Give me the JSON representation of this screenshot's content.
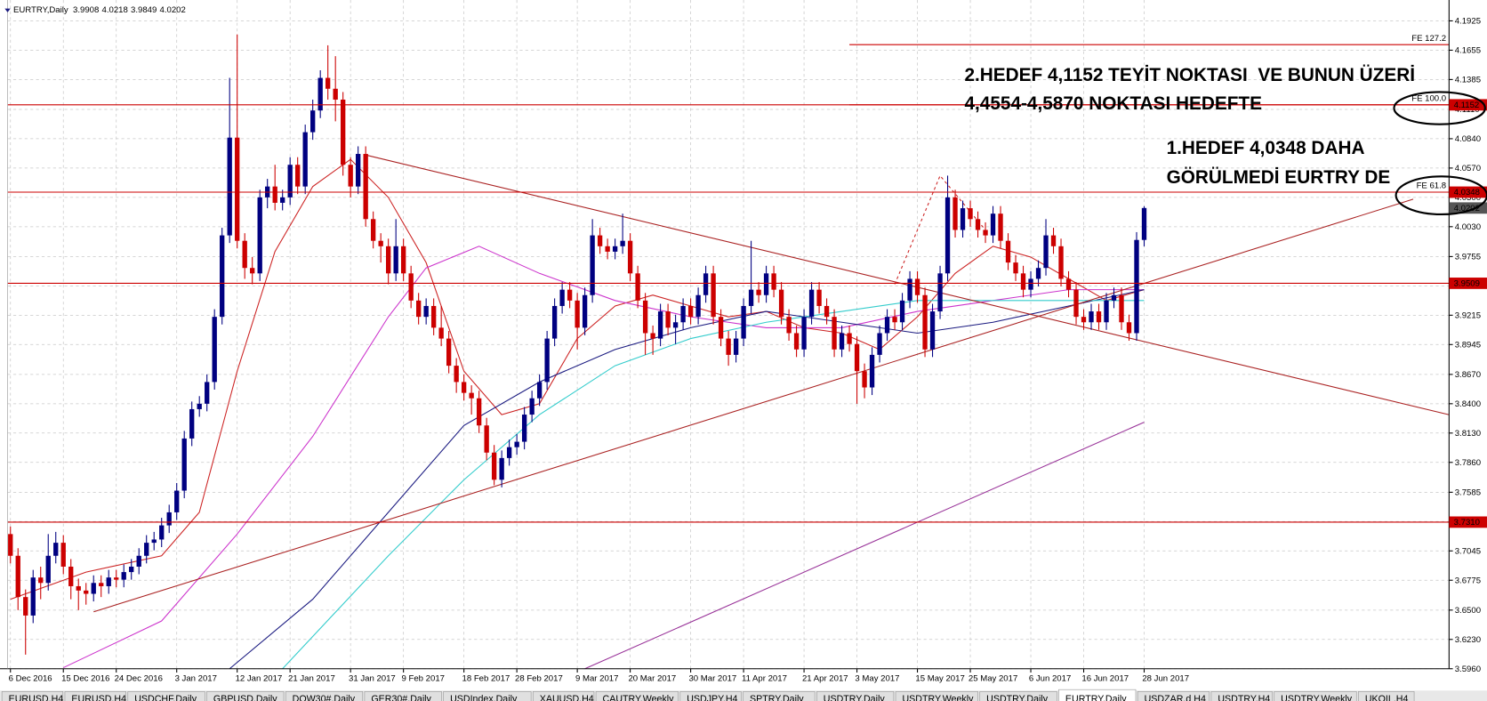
{
  "chart_data": {
    "type": "candlestick",
    "title": "EURTRY,Daily",
    "annotations": [
      "2.HEDEF 4,1152 TEYİT NOKTASI  VE BUNUN ÜZERİ",
      "4,4554-4,5870 NOKTASI HEDEFTE",
      "1.HEDEF 4,0348 DAHA",
      "GÖRÜLMEDİ EURTRY DE"
    ],
    "categories": [
      "6 Dec 2016",
      null,
      null,
      null,
      null,
      null,
      null,
      "15 Dec 2016",
      null,
      null,
      null,
      null,
      null,
      null,
      "24 Dec 2016",
      null,
      null,
      null,
      null,
      null,
      null,
      null,
      "3 Jan 2017",
      null,
      null,
      null,
      null,
      null,
      null,
      null,
      "12 Jan 2017",
      null,
      null,
      null,
      null,
      null,
      null,
      "21 Jan 2017",
      null,
      null,
      null,
      null,
      null,
      null,
      null,
      "31 Jan 2017",
      null,
      null,
      null,
      null,
      null,
      null,
      "9 Feb 2017",
      null,
      null,
      null,
      null,
      null,
      null,
      null,
      "18 Feb 2017",
      null,
      null,
      null,
      null,
      null,
      null,
      "28 Feb 2017",
      null,
      null,
      null,
      null,
      null,
      null,
      null,
      "9 Mar 2017",
      null,
      null,
      null,
      null,
      null,
      null,
      "20 Mar 2017",
      null,
      null,
      null,
      null,
      null,
      null,
      null,
      "30 Mar 2017",
      null,
      null,
      null,
      null,
      null,
      null,
      "11 Apr 2017",
      null,
      null,
      null,
      null,
      null,
      null,
      null,
      "21 Apr 2017",
      null,
      null,
      null,
      null,
      null,
      null,
      "3 May 2017",
      null,
      null,
      null,
      null,
      null,
      null,
      null,
      "15 May 2017",
      null,
      null,
      null,
      null,
      null,
      null,
      "25 May 2017",
      null,
      null,
      null,
      null,
      null,
      null,
      null,
      "6 Jun 2017",
      null,
      null,
      null,
      null,
      null,
      null,
      "16 Jun 2017",
      null,
      null,
      null,
      null,
      null,
      null,
      null,
      "28 Jun 2017"
    ],
    "open": [
      3.72,
      3.7,
      3.662,
      3.645,
      3.68,
      3.675,
      3.7,
      3.712,
      3.69,
      3.672,
      3.668,
      3.665,
      3.675,
      3.672,
      3.68,
      3.678,
      3.685,
      3.69,
      3.7,
      3.712,
      3.715,
      3.728,
      3.74,
      3.76,
      3.808,
      3.835,
      3.84,
      3.86,
      3.92,
      3.995,
      4.085,
      3.99,
      3.965,
      3.96,
      4.03,
      4.04,
      4.025,
      4.03,
      4.06,
      4.04,
      4.09,
      4.11,
      4.14,
      4.13,
      4.12,
      4.06,
      4.04,
      4.07,
      4.01,
      3.99,
      3.985,
      3.96,
      3.985,
      3.96,
      3.935,
      3.92,
      3.93,
      3.91,
      3.9,
      3.875,
      3.86,
      3.85,
      3.845,
      3.82,
      3.795,
      3.77,
      3.79,
      3.8,
      3.805,
      3.83,
      3.845,
      3.86,
      3.9,
      3.93,
      3.945,
      3.935,
      3.91,
      3.94,
      3.995,
      3.985,
      3.98,
      3.985,
      3.99,
      3.96,
      3.935,
      3.905,
      3.9,
      3.925,
      3.91,
      3.915,
      3.93,
      3.92,
      3.94,
      3.96,
      3.92,
      3.9,
      3.885,
      3.9,
      3.93,
      3.945,
      3.94,
      3.96,
      3.945,
      3.92,
      3.905,
      3.89,
      3.92,
      3.945,
      3.93,
      3.92,
      3.89,
      3.905,
      3.895,
      3.87,
      3.855,
      3.885,
      3.905,
      3.92,
      3.915,
      3.935,
      3.955,
      3.94,
      3.89,
      3.925,
      3.96,
      4.03,
      4,
      4.02,
      4.01,
      4,
      3.995,
      4.015,
      3.99,
      3.97,
      3.96,
      3.945,
      3.955,
      3.965,
      3.995,
      3.985,
      3.955,
      3.945,
      3.92,
      3.915,
      3.925,
      3.915,
      3.935,
      3.94,
      3.915,
      3.905,
      3.9908
    ],
    "high": [
      3.727,
      3.707,
      3.669,
      3.687,
      3.69,
      3.72,
      3.722,
      3.719,
      3.697,
      3.679,
      3.675,
      3.682,
      3.682,
      3.687,
      3.687,
      3.692,
      3.697,
      3.707,
      3.719,
      3.722,
      3.735,
      3.747,
      3.767,
      3.815,
      3.842,
      3.847,
      3.867,
      3.927,
      4.002,
      4.14,
      4.18,
      3.997,
      3.975,
      4.037,
      4.047,
      4.06,
      4.037,
      4.067,
      4.067,
      4.097,
      4.12,
      4.147,
      4.17,
      4.16,
      4.127,
      4.067,
      4.077,
      4.077,
      4.017,
      3.997,
      3.992,
      4.01,
      3.992,
      3.967,
      3.942,
      3.937,
      3.937,
      3.93,
      3.907,
      3.882,
      3.867,
      3.857,
      3.852,
      3.827,
      3.802,
      3.797,
      3.807,
      3.812,
      3.837,
      3.852,
      3.867,
      3.907,
      3.937,
      3.952,
      3.952,
      3.942,
      3.947,
      4.01,
      4.002,
      3.992,
      3.992,
      4.015,
      3.997,
      3.967,
      3.942,
      3.912,
      3.932,
      3.932,
      3.922,
      3.937,
      3.937,
      3.947,
      3.967,
      3.967,
      3.927,
      3.907,
      3.907,
      3.937,
      3.99,
      3.952,
      3.967,
      3.967,
      3.952,
      3.927,
      3.912,
      3.927,
      3.952,
      3.952,
      3.937,
      3.927,
      3.912,
      3.912,
      3.902,
      3.877,
      3.892,
      3.912,
      3.927,
      3.927,
      3.942,
      3.962,
      3.962,
      3.947,
      3.932,
      3.967,
      4.05,
      4.037,
      4.027,
      4.027,
      4.017,
      4.007,
      4.022,
      4.022,
      3.997,
      3.977,
      3.967,
      3.962,
      3.972,
      4.01,
      4.002,
      3.992,
      3.962,
      3.952,
      3.927,
      3.932,
      3.932,
      3.942,
      3.947,
      3.947,
      3.922,
      3.998,
      4.0218
    ],
    "low": [
      3.693,
      3.65,
      3.609,
      3.638,
      3.66,
      3.668,
      3.693,
      3.683,
      3.66,
      3.65,
      3.655,
      3.658,
      3.662,
      3.665,
      3.671,
      3.671,
      3.678,
      3.683,
      3.693,
      3.705,
      3.708,
      3.721,
      3.733,
      3.753,
      3.801,
      3.828,
      3.833,
      3.853,
      3.913,
      3.988,
      3.983,
      3.955,
      3.95,
      3.953,
      4.02,
      4.018,
      4.018,
      4.023,
      4.033,
      4.033,
      4.083,
      4.103,
      4.12,
      4.1,
      4.05,
      4.03,
      4.033,
      4.003,
      3.983,
      3.97,
      3.95,
      3.953,
      3.953,
      3.928,
      3.913,
      3.913,
      3.903,
      3.893,
      3.868,
      3.85,
      3.843,
      3.83,
      3.813,
      3.788,
      3.765,
      3.763,
      3.783,
      3.793,
      3.798,
      3.823,
      3.838,
      3.853,
      3.893,
      3.923,
      3.928,
      3.89,
      3.903,
      3.933,
      3.978,
      3.973,
      3.973,
      3.978,
      3.953,
      3.928,
      3.885,
      3.885,
      3.893,
      3.903,
      3.895,
      3.908,
      3.913,
      3.913,
      3.933,
      3.913,
      3.893,
      3.875,
      3.878,
      3.893,
      3.923,
      3.933,
      3.933,
      3.938,
      3.913,
      3.898,
      3.883,
      3.883,
      3.913,
      3.923,
      3.913,
      3.883,
      3.883,
      3.888,
      3.84,
      3.845,
      3.848,
      3.878,
      3.898,
      3.908,
      3.908,
      3.928,
      3.933,
      3.883,
      3.883,
      3.918,
      3.953,
      3.993,
      3.993,
      4.003,
      3.993,
      3.988,
      3.988,
      3.983,
      3.963,
      3.953,
      3.938,
      3.938,
      3.948,
      3.958,
      3.978,
      3.948,
      3.938,
      3.913,
      3.908,
      3.908,
      3.908,
      3.908,
      3.928,
      3.908,
      3.898,
      3.898,
      3.9849
    ],
    "close": [
      3.7,
      3.662,
      3.645,
      3.68,
      3.675,
      3.7,
      3.712,
      3.69,
      3.672,
      3.668,
      3.665,
      3.675,
      3.672,
      3.68,
      3.678,
      3.685,
      3.69,
      3.7,
      3.712,
      3.715,
      3.728,
      3.74,
      3.76,
      3.808,
      3.835,
      3.84,
      3.86,
      3.92,
      3.995,
      4.085,
      3.99,
      3.965,
      3.96,
      4.03,
      4.04,
      4.025,
      4.03,
      4.06,
      4.04,
      4.09,
      4.11,
      4.14,
      4.13,
      4.12,
      4.06,
      4.04,
      4.07,
      4.01,
      3.99,
      3.985,
      3.96,
      3.985,
      3.96,
      3.935,
      3.92,
      3.93,
      3.91,
      3.9,
      3.875,
      3.86,
      3.85,
      3.845,
      3.82,
      3.795,
      3.77,
      3.79,
      3.8,
      3.805,
      3.83,
      3.845,
      3.86,
      3.9,
      3.93,
      3.945,
      3.935,
      3.91,
      3.94,
      3.995,
      3.985,
      3.98,
      3.985,
      3.99,
      3.96,
      3.935,
      3.905,
      3.9,
      3.925,
      3.91,
      3.915,
      3.93,
      3.92,
      3.94,
      3.96,
      3.92,
      3.9,
      3.885,
      3.9,
      3.93,
      3.945,
      3.94,
      3.96,
      3.945,
      3.92,
      3.905,
      3.89,
      3.92,
      3.945,
      3.93,
      3.92,
      3.89,
      3.905,
      3.895,
      3.87,
      3.855,
      3.885,
      3.905,
      3.92,
      3.915,
      3.935,
      3.955,
      3.94,
      3.89,
      3.925,
      3.96,
      4.03,
      4,
      4.02,
      4.01,
      4,
      3.995,
      4.015,
      3.99,
      3.97,
      3.96,
      3.945,
      3.955,
      3.965,
      3.995,
      3.985,
      3.955,
      3.945,
      3.92,
      3.915,
      3.925,
      3.915,
      3.935,
      3.94,
      3.915,
      3.905,
      3.9908,
      4.0202
    ],
    "bull_color": "#000080",
    "bear_color": "#cc0000",
    "xlim": [
      -1.38,
      190.34
    ],
    "ylim": [
      3.596,
      4.1925
    ],
    "grid": true,
    "yticks": [
      {
        "value": 4.1925,
        "label": "4.1925"
      },
      {
        "value": 4.1655,
        "label": "4.1655"
      },
      {
        "value": 4.1385,
        "label": "4.1385"
      },
      {
        "value": 4.111,
        "label": "4.1110"
      },
      {
        "value": 4.084,
        "label": "4.0840"
      },
      {
        "value": 4.057,
        "label": "4.0570"
      },
      {
        "value": 4.03,
        "label": "4.0300"
      },
      {
        "value": 4.003,
        "label": "4.0030"
      },
      {
        "value": 3.9755,
        "label": "3.9755"
      },
      {
        "value": 3.9485,
        "label": "3.9485"
      },
      {
        "value": 3.9215,
        "label": "3.9215"
      },
      {
        "value": 3.8945,
        "label": "3.8945"
      },
      {
        "value": 3.867,
        "label": "3.8670"
      },
      {
        "value": 3.84,
        "label": "3.8400"
      },
      {
        "value": 3.813,
        "label": "3.8130"
      },
      {
        "value": 3.786,
        "label": "3.7860"
      },
      {
        "value": 3.7585,
        "label": "3.7585"
      },
      {
        "value": 3.7315,
        "label": "3.7315"
      },
      {
        "value": 3.7045,
        "label": "3.7045"
      },
      {
        "value": 3.6775,
        "label": "3.6775"
      },
      {
        "value": 3.65,
        "label": "3.6500"
      },
      {
        "value": 3.623,
        "label": "3.6230"
      },
      {
        "value": 3.596,
        "label": "3.5960"
      }
    ],
    "levels": [
      {
        "value": 4.1152,
        "label": "4.1152"
      },
      {
        "value": 4.0348,
        "label": "4.0348"
      },
      {
        "value": 3.9509,
        "label": "3.9509"
      },
      {
        "value": 3.731,
        "label": "3.7310"
      }
    ],
    "level_color": "#cc0000",
    "fe_start": 111,
    "fe_levels": [
      {
        "value": 4.1706,
        "label": "FE 127.2"
      },
      {
        "value": 4.1152,
        "label": "FE 100.0"
      },
      {
        "value": 4.0348,
        "label": "FE 61.8"
      }
    ],
    "overlays": [
      {
        "color": "#cc2222",
        "x": [
          0,
          10,
          20,
          25,
          30,
          35,
          40,
          45,
          50,
          55,
          60,
          65,
          70,
          75,
          80,
          85,
          90,
          95,
          100,
          105,
          110,
          115,
          120,
          125,
          130,
          135,
          140,
          145,
          150
        ],
        "values": [
          3.66,
          3.685,
          3.7,
          3.74,
          3.87,
          3.98,
          4.04,
          4.065,
          4.03,
          3.97,
          3.87,
          3.83,
          3.84,
          3.9,
          3.93,
          3.94,
          3.93,
          3.92,
          3.925,
          3.91,
          3.905,
          3.89,
          3.92,
          3.96,
          3.985,
          3.975,
          3.955,
          3.935,
          3.945
        ]
      },
      {
        "color": "#cc33cc",
        "x": [
          7,
          20,
          30,
          40,
          50,
          55,
          62,
          70,
          80,
          90,
          100,
          110,
          120,
          130,
          140,
          150
        ],
        "values": [
          3.597,
          3.64,
          3.72,
          3.81,
          3.92,
          3.965,
          3.985,
          3.96,
          3.935,
          3.92,
          3.91,
          3.91,
          3.925,
          3.935,
          3.945,
          3.945
        ]
      },
      {
        "color": "#1a1a80",
        "x": [
          29,
          40,
          50,
          60,
          70,
          80,
          90,
          100,
          110,
          120,
          130,
          140,
          150
        ],
        "values": [
          3.596,
          3.66,
          3.74,
          3.82,
          3.86,
          3.89,
          3.91,
          3.925,
          3.915,
          3.905,
          3.915,
          3.93,
          3.945
        ]
      },
      {
        "color": "#33cccc",
        "x": [
          36,
          50,
          60,
          70,
          80,
          90,
          100,
          110,
          120,
          130,
          140,
          150
        ],
        "values": [
          3.596,
          3.7,
          3.77,
          3.83,
          3.875,
          3.9,
          3.915,
          3.925,
          3.935,
          3.935,
          3.935,
          3.935
        ]
      },
      {
        "color": "#993399",
        "x": [
          76,
          150
        ],
        "values": [
          3.596,
          3.823
        ]
      },
      {
        "color": "#aa2222",
        "x": [
          46.8,
          190.3
        ],
        "values": [
          4.0694,
          3.83
        ]
      },
      {
        "color": "#aa2222",
        "x": [
          11,
          185.6
        ],
        "values": [
          3.6484,
          4.0283
        ]
      },
      {
        "color": "#cc2222",
        "dashed": true,
        "x": [
          117,
          123,
          129
        ],
        "values": [
          3.95,
          4.05,
          4.0
        ]
      }
    ]
  },
  "tabs": [
    "EURUSD,H4",
    "EURUSD,H4",
    "USDCHF,Daily",
    "GBPUSD,Daily",
    "DOW30#,Daily",
    "GER30#,Daily",
    "USDIndex,Daily",
    "XAUUSD,H4",
    "CAUTRY,Weekly",
    "USDJPY,H4",
    "SPTRY,Daily",
    "USDTRY,Daily",
    "USDTRY,Weekly",
    "USDTRY,Daily",
    "EURTRY,Daily",
    "USDZAR,d H4",
    "USDTRY,H4",
    "USDTRY,Weekly",
    "UKOIL,H4"
  ]
}
